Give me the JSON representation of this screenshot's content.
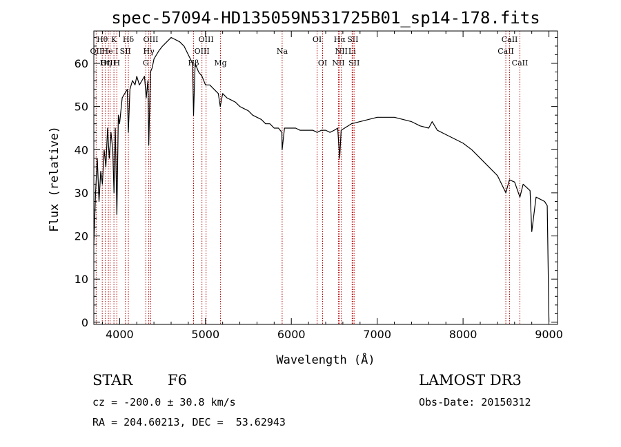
{
  "chart_data": {
    "type": "line",
    "title": "spec-57094-HD135059N531725B01_sp14-178.fits",
    "xlabel": "Wavelength (Å)",
    "ylabel": "Flux (relative)",
    "xlim": [
      3700,
      9100
    ],
    "ylim": [
      -0.5,
      67.5
    ],
    "xticks": [
      4000,
      5000,
      6000,
      7000,
      8000,
      9000
    ],
    "yticks": [
      0,
      10,
      20,
      30,
      40,
      50,
      60
    ],
    "series": [
      {
        "name": "flux",
        "x": [
          3700,
          3720,
          3740,
          3760,
          3780,
          3800,
          3820,
          3840,
          3860,
          3880,
          3900,
          3920,
          3935,
          3950,
          3968,
          3985,
          4000,
          4030,
          4060,
          4090,
          4102,
          4120,
          4150,
          4180,
          4200,
          4230,
          4260,
          4290,
          4310,
          4330,
          4340,
          4360,
          4380,
          4400,
          4430,
          4460,
          4500,
          4550,
          4600,
          4650,
          4700,
          4750,
          4800,
          4850,
          4861,
          4880,
          4920,
          4960,
          5000,
          5050,
          5100,
          5150,
          5172,
          5200,
          5250,
          5300,
          5350,
          5400,
          5450,
          5500,
          5550,
          5600,
          5650,
          5700,
          5750,
          5800,
          5850,
          5890,
          5893,
          5920,
          5950,
          6000,
          6050,
          6100,
          6150,
          6200,
          6250,
          6300,
          6350,
          6400,
          6450,
          6500,
          6540,
          6563,
          6580,
          6620,
          6700,
          6800,
          6900,
          7000,
          7100,
          7200,
          7300,
          7400,
          7500,
          7600,
          7640,
          7700,
          7800,
          7900,
          8000,
          8100,
          8200,
          8300,
          8400,
          8498,
          8540,
          8600,
          8662,
          8700,
          8780,
          8800,
          8850,
          8900,
          8950,
          8980,
          9000
        ],
        "values": [
          18,
          30,
          38,
          28,
          35,
          32,
          40,
          36,
          45,
          38,
          44,
          40,
          30,
          45,
          25,
          48,
          46,
          52,
          53,
          54,
          44,
          54,
          56,
          55,
          57,
          55,
          56,
          57,
          52,
          56,
          41,
          58,
          59,
          61,
          62,
          63,
          64,
          65,
          66,
          65.5,
          65,
          64,
          62,
          60,
          48,
          60,
          58,
          57,
          55,
          55,
          54,
          53,
          50,
          53,
          52,
          51.5,
          51,
          50,
          49.5,
          49,
          48,
          47.5,
          47,
          46,
          46,
          45,
          45,
          44,
          40,
          45,
          45,
          45,
          45,
          44.5,
          44.5,
          44.5,
          44.5,
          44,
          44.5,
          44.5,
          44,
          44.5,
          45,
          38,
          44.5,
          45,
          46,
          46.5,
          47,
          47.5,
          47.5,
          47.5,
          47,
          46.5,
          45.5,
          45,
          46.5,
          44.5,
          43.5,
          42.5,
          41.5,
          40,
          38,
          36,
          34,
          30,
          33,
          32.5,
          29,
          32,
          30.5,
          21,
          29,
          28.5,
          28,
          27,
          0
        ]
      }
    ],
    "lines": [
      {
        "label": "Hθ",
        "x": 3798,
        "row": 1
      },
      {
        "label": "OII",
        "x": 3727,
        "row": 2
      },
      {
        "label": "Hη",
        "x": 3835,
        "row": 3
      },
      {
        "label": "OIII",
        "x": 3869,
        "row": 3
      },
      {
        "label": "He I",
        "x": 3889,
        "row": 2
      },
      {
        "label": "K",
        "x": 3934,
        "row": 1
      },
      {
        "label": "H",
        "x": 3968,
        "row": 3
      },
      {
        "label": "SII",
        "x": 4068,
        "row": 2
      },
      {
        "label": "Hδ",
        "x": 4102,
        "row": 1
      },
      {
        "label": "G",
        "x": 4305,
        "row": 3
      },
      {
        "label": "Hγ",
        "x": 4340,
        "row": 2
      },
      {
        "label": "OIII",
        "x": 4363,
        "row": 1
      },
      {
        "label": "Hβ",
        "x": 4861,
        "row": 3
      },
      {
        "label": "OIII",
        "x": 4959,
        "row": 2
      },
      {
        "label": "OIII",
        "x": 5007,
        "row": 1
      },
      {
        "label": "Mg",
        "x": 5175,
        "row": 3
      },
      {
        "label": "Na",
        "x": 5893,
        "row": 2
      },
      {
        "label": "OI",
        "x": 6300,
        "row": 1
      },
      {
        "label": "OI",
        "x": 6364,
        "row": 3
      },
      {
        "label": "NII",
        "x": 6548,
        "row": 3
      },
      {
        "label": "Hα",
        "x": 6563,
        "row": 1
      },
      {
        "label": "NII",
        "x": 6583,
        "row": 2
      },
      {
        "label": "Li",
        "x": 6708,
        "row": 2
      },
      {
        "label": "SII",
        "x": 6716,
        "row": 1
      },
      {
        "label": "SII",
        "x": 6731,
        "row": 3
      },
      {
        "label": "CaII",
        "x": 8498,
        "row": 2
      },
      {
        "label": "CaII",
        "x": 8542,
        "row": 1
      },
      {
        "label": "CaII",
        "x": 8662,
        "row": 3
      }
    ]
  },
  "info": {
    "object_type": "STAR",
    "subclass": "F6",
    "survey": "LAMOST DR3",
    "cz": "cz = -200.0 ± 30.8 km/s",
    "obs_date": "Obs-Date: 20150312",
    "coords": "RA = 204.60213, DEC =  53.62943"
  }
}
